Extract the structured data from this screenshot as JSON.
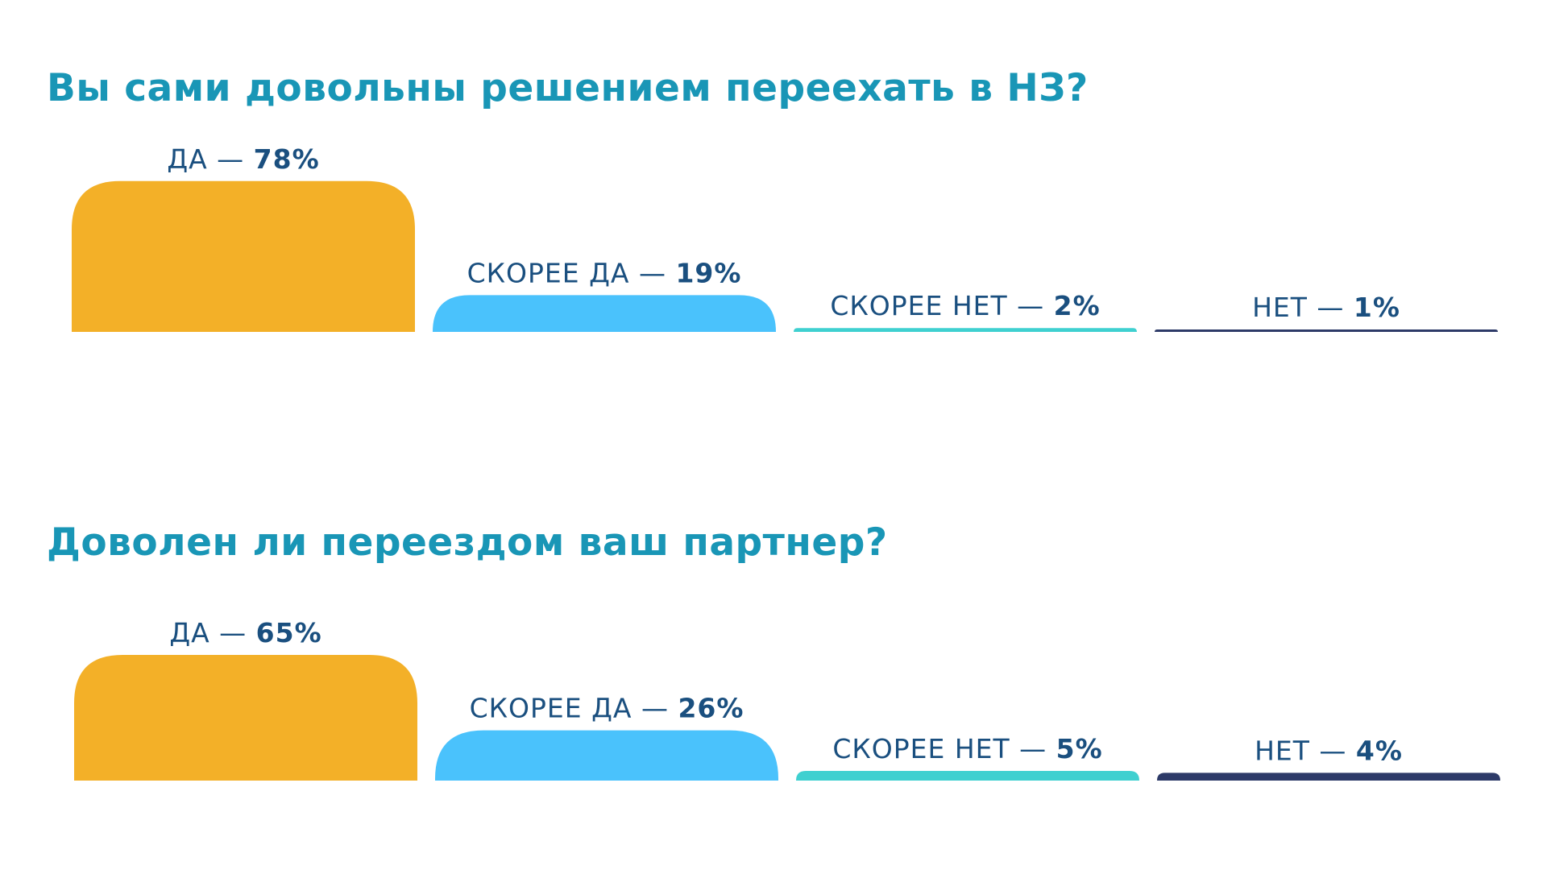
{
  "colors": {
    "title": "#1996b6",
    "label": "#1a4f7f",
    "categories": [
      "#f3b028",
      "#4ac2fc",
      "#3fd0d0",
      "#2d3a68"
    ]
  },
  "chart_data": [
    {
      "type": "bar",
      "title": "Вы сами довольны решением переехать в НЗ?",
      "categories": [
        "ДА",
        "СКОРЕЕ ДА",
        "СКОРЕЕ НЕТ",
        "НЕТ"
      ],
      "values": [
        78,
        19,
        2,
        1
      ],
      "labels": [
        "ДА — 78%",
        "СКОРЕЕ ДА — 19%",
        "СКОРЕЕ НЕТ — 2%",
        "НЕТ — 1%"
      ],
      "unit": "%",
      "ylim": [
        0,
        100
      ],
      "grid": false
    },
    {
      "type": "bar",
      "title": "Доволен ли переездом ваш партнер?",
      "categories": [
        "ДА",
        "СКОРЕЕ ДА",
        "СКОРЕЕ НЕТ",
        "НЕТ"
      ],
      "values": [
        65,
        26,
        5,
        4
      ],
      "labels": [
        "ДА — 65%",
        "СКОРЕЕ ДА — 26%",
        "СКОРЕЕ НЕТ — 5%",
        "НЕТ — 4%"
      ],
      "unit": "%",
      "ylim": [
        0,
        100
      ],
      "grid": false
    }
  ]
}
